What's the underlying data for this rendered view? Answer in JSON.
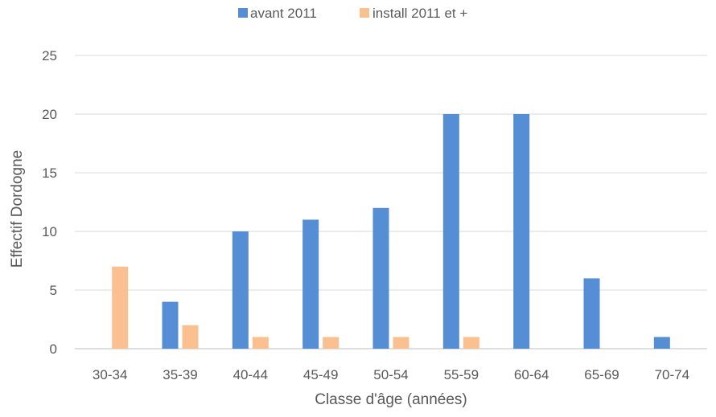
{
  "chart_data": {
    "type": "bar",
    "categories": [
      "30-34",
      "35-39",
      "40-44",
      "45-49",
      "50-54",
      "55-59",
      "60-64",
      "65-69",
      "70-74"
    ],
    "series": [
      {
        "name": "avant 2011",
        "color": "#558ED5",
        "values": [
          0,
          4,
          10,
          11,
          12,
          20,
          20,
          6,
          1
        ]
      },
      {
        "name": "install 2011 et +",
        "color": "#FAC090",
        "values": [
          7,
          2,
          1,
          1,
          1,
          1,
          0,
          0,
          0
        ]
      }
    ],
    "title": "",
    "xlabel": "Classe d'âge (années)",
    "ylabel": "Effectif Dordogne",
    "ylim": [
      0,
      25
    ],
    "yticks": [
      0,
      5,
      10,
      15,
      20,
      25
    ],
    "grid": true,
    "legend_position": "top"
  }
}
